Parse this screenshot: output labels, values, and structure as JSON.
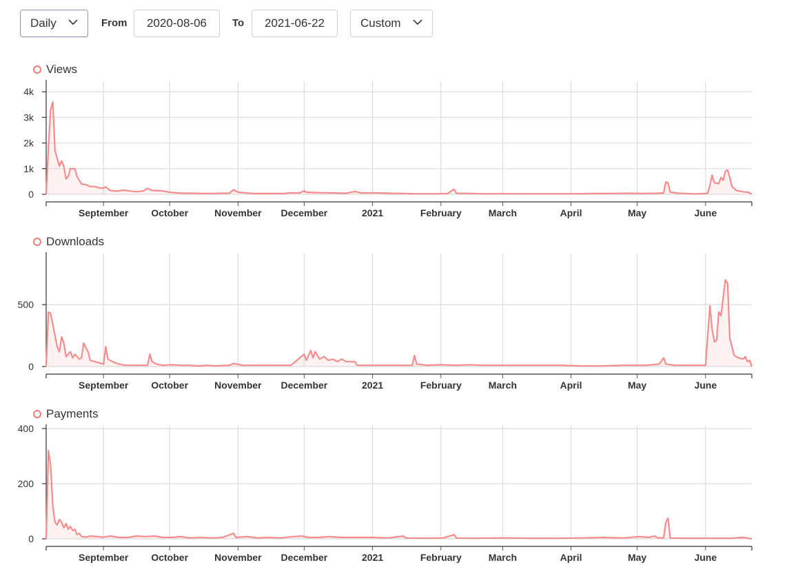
{
  "toolbar": {
    "interval": "Daily",
    "from_label": "From",
    "from_value": "2020-08-06",
    "to_label": "To",
    "to_value": "2021-06-22",
    "range": "Custom",
    "active_color": "#9b88c7"
  },
  "series_color": "#f48c8c",
  "chart_data": [
    {
      "type": "area",
      "title": "Views",
      "x_start": "2020-08-06",
      "x_end": "2021-06-22",
      "x_tick_labels": [
        "September",
        "October",
        "November",
        "December",
        "2021",
        "February",
        "March",
        "April",
        "May",
        "June"
      ],
      "y_ticks": [
        0,
        1000,
        2000,
        3000,
        4000
      ],
      "y_tick_labels": [
        "0",
        "1k",
        "2k",
        "3k",
        "4k"
      ],
      "ylim": [
        0,
        4300
      ],
      "grid": true,
      "points": [
        [
          "2020-08-06",
          0
        ],
        [
          "2020-08-07",
          1800
        ],
        [
          "2020-08-08",
          3300
        ],
        [
          "2020-08-09",
          3600
        ],
        [
          "2020-08-10",
          1700
        ],
        [
          "2020-08-12",
          1100
        ],
        [
          "2020-08-13",
          1300
        ],
        [
          "2020-08-14",
          1100
        ],
        [
          "2020-08-15",
          600
        ],
        [
          "2020-08-16",
          700
        ],
        [
          "2020-08-17",
          1000
        ],
        [
          "2020-08-19",
          1000
        ],
        [
          "2020-08-20",
          700
        ],
        [
          "2020-08-21",
          550
        ],
        [
          "2020-08-22",
          400
        ],
        [
          "2020-08-24",
          380
        ],
        [
          "2020-08-26",
          300
        ],
        [
          "2020-08-28",
          300
        ],
        [
          "2020-08-30",
          250
        ],
        [
          "2020-09-01",
          240
        ],
        [
          "2020-09-02",
          290
        ],
        [
          "2020-09-04",
          150
        ],
        [
          "2020-09-07",
          120
        ],
        [
          "2020-09-10",
          160
        ],
        [
          "2020-09-13",
          130
        ],
        [
          "2020-09-16",
          100
        ],
        [
          "2020-09-19",
          130
        ],
        [
          "2020-09-21",
          230
        ],
        [
          "2020-09-23",
          150
        ],
        [
          "2020-09-27",
          140
        ],
        [
          "2020-10-01",
          80
        ],
        [
          "2020-10-05",
          50
        ],
        [
          "2020-10-08",
          40
        ],
        [
          "2020-10-12",
          40
        ],
        [
          "2020-10-16",
          30
        ],
        [
          "2020-10-20",
          30
        ],
        [
          "2020-10-24",
          40
        ],
        [
          "2020-10-28",
          40
        ],
        [
          "2020-10-30",
          180
        ],
        [
          "2020-11-01",
          80
        ],
        [
          "2020-11-04",
          60
        ],
        [
          "2020-11-08",
          30
        ],
        [
          "2020-11-15",
          30
        ],
        [
          "2020-11-22",
          30
        ],
        [
          "2020-11-25",
          60
        ],
        [
          "2020-11-29",
          50
        ],
        [
          "2020-12-01",
          140
        ],
        [
          "2020-12-02",
          80
        ],
        [
          "2020-12-05",
          70
        ],
        [
          "2020-12-10",
          60
        ],
        [
          "2020-12-15",
          50
        ],
        [
          "2020-12-20",
          40
        ],
        [
          "2020-12-24",
          110
        ],
        [
          "2020-12-27",
          50
        ],
        [
          "2021-01-01",
          60
        ],
        [
          "2021-01-08",
          40
        ],
        [
          "2021-01-15",
          30
        ],
        [
          "2021-01-22",
          20
        ],
        [
          "2021-01-29",
          20
        ],
        [
          "2021-02-04",
          30
        ],
        [
          "2021-02-07",
          200
        ],
        [
          "2021-02-08",
          40
        ],
        [
          "2021-02-15",
          30
        ],
        [
          "2021-02-22",
          20
        ],
        [
          "2021-03-01",
          25
        ],
        [
          "2021-03-08",
          20
        ],
        [
          "2021-03-15",
          20
        ],
        [
          "2021-03-22",
          20
        ],
        [
          "2021-03-29",
          20
        ],
        [
          "2021-04-05",
          25
        ],
        [
          "2021-04-12",
          30
        ],
        [
          "2021-04-19",
          30
        ],
        [
          "2021-04-26",
          40
        ],
        [
          "2021-05-03",
          30
        ],
        [
          "2021-05-10",
          40
        ],
        [
          "2021-05-13",
          50
        ],
        [
          "2021-05-14",
          480
        ],
        [
          "2021-05-15",
          450
        ],
        [
          "2021-05-16",
          80
        ],
        [
          "2021-05-20",
          40
        ],
        [
          "2021-05-27",
          20
        ],
        [
          "2021-05-31",
          30
        ],
        [
          "2021-06-01",
          20
        ],
        [
          "2021-06-02",
          50
        ],
        [
          "2021-06-03",
          350
        ],
        [
          "2021-06-04",
          750
        ],
        [
          "2021-06-05",
          450
        ],
        [
          "2021-06-07",
          420
        ],
        [
          "2021-06-08",
          650
        ],
        [
          "2021-06-09",
          550
        ],
        [
          "2021-06-10",
          900
        ],
        [
          "2021-06-11",
          950
        ],
        [
          "2021-06-12",
          650
        ],
        [
          "2021-06-13",
          300
        ],
        [
          "2021-06-15",
          150
        ],
        [
          "2021-06-18",
          100
        ],
        [
          "2021-06-20",
          80
        ],
        [
          "2021-06-21",
          60
        ],
        [
          "2021-06-22",
          0
        ]
      ]
    },
    {
      "type": "area",
      "title": "Downloads",
      "x_start": "2020-08-06",
      "x_end": "2021-06-22",
      "x_tick_labels": [
        "September",
        "October",
        "November",
        "December",
        "2021",
        "February",
        "March",
        "April",
        "May",
        "June"
      ],
      "y_ticks": [
        0,
        500
      ],
      "y_tick_labels": [
        "0",
        "500"
      ],
      "ylim": [
        0,
        890
      ],
      "grid": true,
      "points": [
        [
          "2020-08-06",
          0
        ],
        [
          "2020-08-07",
          440
        ],
        [
          "2020-08-08",
          430
        ],
        [
          "2020-08-10",
          250
        ],
        [
          "2020-08-11",
          160
        ],
        [
          "2020-08-12",
          120
        ],
        [
          "2020-08-13",
          240
        ],
        [
          "2020-08-14",
          190
        ],
        [
          "2020-08-15",
          80
        ],
        [
          "2020-08-16",
          100
        ],
        [
          "2020-08-17",
          120
        ],
        [
          "2020-08-18",
          70
        ],
        [
          "2020-08-19",
          100
        ],
        [
          "2020-08-20",
          80
        ],
        [
          "2020-08-21",
          60
        ],
        [
          "2020-08-22",
          70
        ],
        [
          "2020-08-23",
          190
        ],
        [
          "2020-08-24",
          150
        ],
        [
          "2020-08-25",
          120
        ],
        [
          "2020-08-26",
          50
        ],
        [
          "2020-08-28",
          40
        ],
        [
          "2020-08-30",
          30
        ],
        [
          "2020-09-01",
          20
        ],
        [
          "2020-09-02",
          160
        ],
        [
          "2020-09-03",
          60
        ],
        [
          "2020-09-05",
          40
        ],
        [
          "2020-09-08",
          20
        ],
        [
          "2020-09-11",
          10
        ],
        [
          "2020-09-14",
          10
        ],
        [
          "2020-09-18",
          10
        ],
        [
          "2020-09-21",
          10
        ],
        [
          "2020-09-22",
          100
        ],
        [
          "2020-09-23",
          40
        ],
        [
          "2020-09-25",
          20
        ],
        [
          "2020-09-28",
          10
        ],
        [
          "2020-10-02",
          15
        ],
        [
          "2020-10-06",
          10
        ],
        [
          "2020-10-10",
          10
        ],
        [
          "2020-10-14",
          5
        ],
        [
          "2020-10-18",
          10
        ],
        [
          "2020-10-22",
          5
        ],
        [
          "2020-10-28",
          10
        ],
        [
          "2020-10-30",
          25
        ],
        [
          "2020-11-03",
          10
        ],
        [
          "2020-11-08",
          10
        ],
        [
          "2020-11-14",
          10
        ],
        [
          "2020-11-20",
          10
        ],
        [
          "2020-11-25",
          10
        ],
        [
          "2020-12-01",
          100
        ],
        [
          "2020-12-02",
          50
        ],
        [
          "2020-12-04",
          130
        ],
        [
          "2020-12-05",
          70
        ],
        [
          "2020-12-06",
          120
        ],
        [
          "2020-12-08",
          60
        ],
        [
          "2020-12-10",
          80
        ],
        [
          "2020-12-12",
          50
        ],
        [
          "2020-12-14",
          60
        ],
        [
          "2020-12-16",
          40
        ],
        [
          "2020-12-18",
          60
        ],
        [
          "2020-12-20",
          40
        ],
        [
          "2020-12-22",
          40
        ],
        [
          "2020-12-24",
          40
        ],
        [
          "2020-12-25",
          10
        ],
        [
          "2021-01-01",
          10
        ],
        [
          "2021-01-08",
          10
        ],
        [
          "2021-01-14",
          10
        ],
        [
          "2021-01-19",
          10
        ],
        [
          "2021-01-20",
          90
        ],
        [
          "2021-01-21",
          20
        ],
        [
          "2021-01-26",
          10
        ],
        [
          "2021-02-01",
          15
        ],
        [
          "2021-02-08",
          10
        ],
        [
          "2021-02-14",
          15
        ],
        [
          "2021-02-20",
          10
        ],
        [
          "2021-02-26",
          10
        ],
        [
          "2021-03-04",
          10
        ],
        [
          "2021-03-12",
          10
        ],
        [
          "2021-03-20",
          10
        ],
        [
          "2021-03-28",
          10
        ],
        [
          "2021-04-05",
          5
        ],
        [
          "2021-04-15",
          5
        ],
        [
          "2021-04-25",
          10
        ],
        [
          "2021-05-05",
          10
        ],
        [
          "2021-05-11",
          20
        ],
        [
          "2021-05-13",
          70
        ],
        [
          "2021-05-14",
          20
        ],
        [
          "2021-05-18",
          10
        ],
        [
          "2021-05-25",
          10
        ],
        [
          "2021-05-31",
          10
        ],
        [
          "2021-06-01",
          10
        ],
        [
          "2021-06-03",
          490
        ],
        [
          "2021-06-04",
          300
        ],
        [
          "2021-06-05",
          200
        ],
        [
          "2021-06-06",
          210
        ],
        [
          "2021-06-07",
          440
        ],
        [
          "2021-06-08",
          410
        ],
        [
          "2021-06-10",
          700
        ],
        [
          "2021-06-11",
          670
        ],
        [
          "2021-06-12",
          230
        ],
        [
          "2021-06-14",
          90
        ],
        [
          "2021-06-16",
          70
        ],
        [
          "2021-06-18",
          60
        ],
        [
          "2021-06-19",
          80
        ],
        [
          "2021-06-20",
          40
        ],
        [
          "2021-06-21",
          50
        ],
        [
          "2021-06-22",
          0
        ]
      ]
    },
    {
      "type": "area",
      "title": "Payments",
      "x_start": "2020-08-06",
      "x_end": "2021-06-22",
      "x_tick_labels": [
        "September",
        "October",
        "November",
        "December",
        "2021",
        "February",
        "March",
        "April",
        "May",
        "June"
      ],
      "y_ticks": [
        0,
        200,
        400
      ],
      "y_tick_labels": [
        "0",
        "200",
        "400"
      ],
      "ylim": [
        0,
        400
      ],
      "grid": true,
      "points": [
        [
          "2020-08-06",
          0
        ],
        [
          "2020-08-07",
          320
        ],
        [
          "2020-08-08",
          270
        ],
        [
          "2020-08-09",
          120
        ],
        [
          "2020-08-10",
          60
        ],
        [
          "2020-08-11",
          50
        ],
        [
          "2020-08-12",
          70
        ],
        [
          "2020-08-13",
          60
        ],
        [
          "2020-08-14",
          40
        ],
        [
          "2020-08-15",
          55
        ],
        [
          "2020-08-16",
          35
        ],
        [
          "2020-08-17",
          45
        ],
        [
          "2020-08-18",
          30
        ],
        [
          "2020-08-19",
          35
        ],
        [
          "2020-08-20",
          15
        ],
        [
          "2020-08-21",
          20
        ],
        [
          "2020-08-22",
          8
        ],
        [
          "2020-08-24",
          6
        ],
        [
          "2020-08-26",
          10
        ],
        [
          "2020-08-29",
          8
        ],
        [
          "2020-09-01",
          6
        ],
        [
          "2020-09-04",
          10
        ],
        [
          "2020-09-08",
          5
        ],
        [
          "2020-09-12",
          5
        ],
        [
          "2020-09-16",
          10
        ],
        [
          "2020-09-20",
          8
        ],
        [
          "2020-09-24",
          10
        ],
        [
          "2020-09-28",
          5
        ],
        [
          "2020-10-02",
          5
        ],
        [
          "2020-10-06",
          8
        ],
        [
          "2020-10-10",
          3
        ],
        [
          "2020-10-15",
          5
        ],
        [
          "2020-10-20",
          3
        ],
        [
          "2020-10-25",
          5
        ],
        [
          "2020-10-30",
          20
        ],
        [
          "2020-10-31",
          5
        ],
        [
          "2020-11-05",
          8
        ],
        [
          "2020-11-10",
          3
        ],
        [
          "2020-11-15",
          5
        ],
        [
          "2020-11-20",
          3
        ],
        [
          "2020-11-26",
          8
        ],
        [
          "2020-11-30",
          10
        ],
        [
          "2020-12-03",
          5
        ],
        [
          "2020-12-08",
          5
        ],
        [
          "2020-12-12",
          8
        ],
        [
          "2020-12-18",
          5
        ],
        [
          "2020-12-24",
          5
        ],
        [
          "2021-01-01",
          5
        ],
        [
          "2021-01-08",
          3
        ],
        [
          "2021-01-15",
          10
        ],
        [
          "2021-01-16",
          3
        ],
        [
          "2021-01-25",
          2
        ],
        [
          "2021-02-02",
          3
        ],
        [
          "2021-02-07",
          15
        ],
        [
          "2021-02-08",
          3
        ],
        [
          "2021-02-15",
          2
        ],
        [
          "2021-02-25",
          3
        ],
        [
          "2021-03-05",
          3
        ],
        [
          "2021-03-15",
          2
        ],
        [
          "2021-03-25",
          2
        ],
        [
          "2021-04-05",
          3
        ],
        [
          "2021-04-15",
          5
        ],
        [
          "2021-04-25",
          3
        ],
        [
          "2021-05-02",
          8
        ],
        [
          "2021-05-06",
          5
        ],
        [
          "2021-05-09",
          10
        ],
        [
          "2021-05-10",
          4
        ],
        [
          "2021-05-13",
          3
        ],
        [
          "2021-05-14",
          60
        ],
        [
          "2021-05-15",
          75
        ],
        [
          "2021-05-16",
          3
        ],
        [
          "2021-05-22",
          2
        ],
        [
          "2021-05-30",
          2
        ],
        [
          "2021-06-05",
          2
        ],
        [
          "2021-06-12",
          2
        ],
        [
          "2021-06-18",
          5
        ],
        [
          "2021-06-22",
          0
        ]
      ]
    }
  ]
}
